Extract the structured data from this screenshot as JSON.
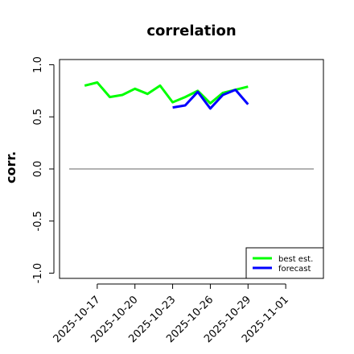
{
  "chart_data": {
    "type": "line",
    "title": "correlation",
    "ylabel": "corr.",
    "xlabel": "",
    "ylim": [
      -1.05,
      1.05
    ],
    "xlim": [
      "2025-10-14",
      "2025-11-04"
    ],
    "yticks": [
      "-1.0",
      "-0.5",
      "0.0",
      "0.5",
      "1.0"
    ],
    "ytick_values": [
      -1.0,
      -0.5,
      0.0,
      0.5,
      1.0
    ],
    "xticks": [
      "2025-10-17",
      "2025-10-20",
      "2025-10-23",
      "2025-10-26",
      "2025-10-29",
      "2025-11-01"
    ],
    "highlight_xtick": "2025-10-23",
    "highlight_color": "#228B22",
    "reference_line": 0,
    "grid": false,
    "legend_position": "bottom-right",
    "series": [
      {
        "name": "best est.",
        "color": "#00FF00",
        "x": [
          "2025-10-16",
          "2025-10-17",
          "2025-10-18",
          "2025-10-19",
          "2025-10-20",
          "2025-10-21",
          "2025-10-22",
          "2025-10-23",
          "2025-10-24",
          "2025-10-25",
          "2025-10-26",
          "2025-10-27",
          "2025-10-28",
          "2025-10-29"
        ],
        "values": [
          0.8,
          0.83,
          0.69,
          0.71,
          0.77,
          0.72,
          0.8,
          0.64,
          0.69,
          0.75,
          0.63,
          0.73,
          0.76,
          0.79
        ]
      },
      {
        "name": "forecast",
        "color": "#0000FF",
        "x": [
          "2025-10-23",
          "2025-10-24",
          "2025-10-25",
          "2025-10-26",
          "2025-10-27",
          "2025-10-28",
          "2025-10-29"
        ],
        "values": [
          0.59,
          0.61,
          0.74,
          0.58,
          0.71,
          0.76,
          0.62
        ]
      }
    ]
  }
}
